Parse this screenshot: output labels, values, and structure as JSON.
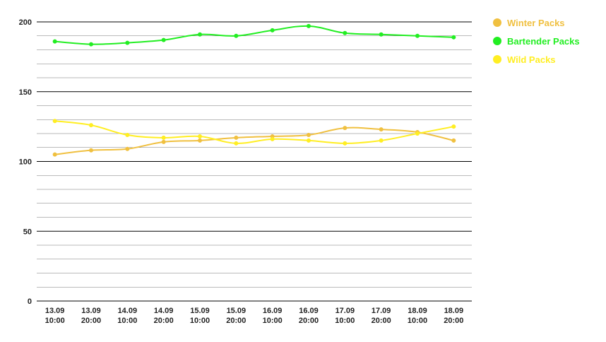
{
  "chart_data": {
    "type": "line",
    "title": "",
    "xlabel": "",
    "ylabel": "",
    "ylim": [
      0,
      200
    ],
    "y_major_ticks": [
      0,
      50,
      100,
      150,
      200
    ],
    "y_minor_step": 10,
    "grid": true,
    "legend_position": "top-right",
    "x": [
      [
        "13.09",
        "10:00"
      ],
      [
        "13.09",
        "20:00"
      ],
      [
        "14.09",
        "10:00"
      ],
      [
        "14.09",
        "20:00"
      ],
      [
        "15.09",
        "10:00"
      ],
      [
        "15.09",
        "20:00"
      ],
      [
        "16.09",
        "10:00"
      ],
      [
        "16.09",
        "20:00"
      ],
      [
        "17.09",
        "10:00"
      ],
      [
        "17.09",
        "20:00"
      ],
      [
        "18.09",
        "10:00"
      ],
      [
        "18.09",
        "20:00"
      ]
    ],
    "series": [
      {
        "name": "Winter Packs",
        "color": "#f0c040",
        "values": [
          105,
          108,
          109,
          114,
          115,
          117,
          118,
          119,
          124,
          123,
          121,
          115
        ]
      },
      {
        "name": "Bartender Packs",
        "color": "#22ee22",
        "values": [
          186,
          184,
          185,
          187,
          191,
          190,
          194,
          197,
          192,
          191,
          190,
          189
        ]
      },
      {
        "name": "Wild Packs",
        "color": "#ffee22",
        "values": [
          129,
          126,
          119,
          117,
          118,
          113,
          116,
          115,
          113,
          115,
          120,
          125
        ]
      }
    ]
  }
}
